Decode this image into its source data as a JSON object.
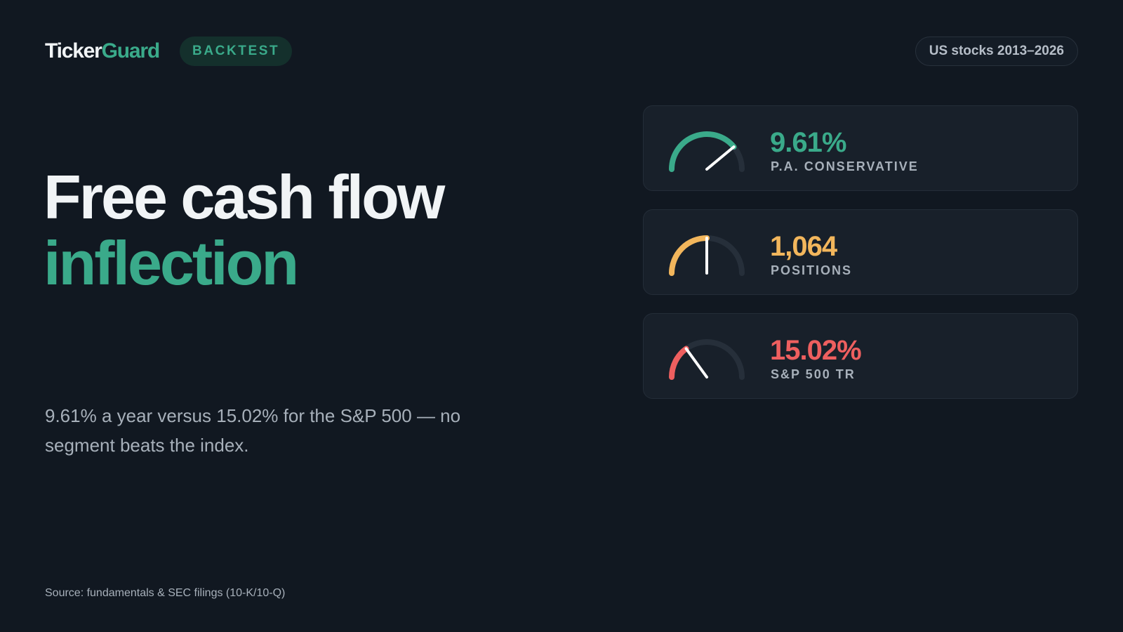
{
  "brand": {
    "name_main": "Ticker",
    "name_accent": "Guard"
  },
  "badge": "BACKTEST",
  "range": "US stocks 2013–2026",
  "headline": {
    "line1": "Free cash flow",
    "line2": "inflection"
  },
  "subtitle": "9.61% a year versus 15.02% for the S&P 500 — no segment beats the index.",
  "source": "Source: fundamentals & SEC filings (10-K/10-Q)",
  "colors": {
    "green": "#3aaa8a",
    "amber": "#f2b65c",
    "red": "#ee5f5f",
    "track": "#262f3a",
    "needle": "#ffffff"
  },
  "metrics": [
    {
      "value": "9.61%",
      "label": "P.A. CONSERVATIVE",
      "color": "#3aaa8a",
      "level": 0.78
    },
    {
      "value": "1,064",
      "label": "POSITIONS",
      "color": "#f2b65c",
      "level": 0.5
    },
    {
      "value": "15.02%",
      "label": "S&P 500 TR",
      "color": "#ee5f5f",
      "level": 0.3
    }
  ]
}
